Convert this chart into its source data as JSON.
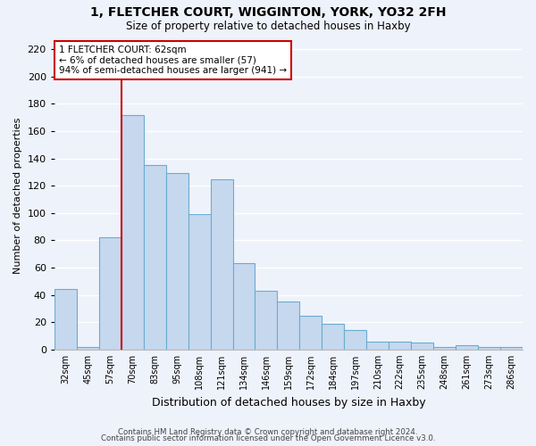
{
  "title": "1, FLETCHER COURT, WIGGINTON, YORK, YO32 2FH",
  "subtitle": "Size of property relative to detached houses in Haxby",
  "xlabel": "Distribution of detached houses by size in Haxby",
  "ylabel": "Number of detached properties",
  "bar_labels": [
    "32sqm",
    "45sqm",
    "57sqm",
    "70sqm",
    "83sqm",
    "95sqm",
    "108sqm",
    "121sqm",
    "134sqm",
    "146sqm",
    "159sqm",
    "172sqm",
    "184sqm",
    "197sqm",
    "210sqm",
    "222sqm",
    "235sqm",
    "248sqm",
    "261sqm",
    "273sqm",
    "286sqm"
  ],
  "bar_values": [
    44,
    2,
    82,
    172,
    135,
    129,
    99,
    125,
    63,
    43,
    35,
    25,
    19,
    14,
    6,
    6,
    5,
    2,
    3,
    2,
    2
  ],
  "bar_color": "#c5d8ee",
  "bar_edge_color": "#6bacd0",
  "annotation_text_line1": "1 FLETCHER COURT: 62sqm",
  "annotation_text_line2": "← 6% of detached houses are smaller (57)",
  "annotation_text_line3": "94% of semi-detached houses are larger (941) →",
  "annotation_box_color": "#ffffff",
  "annotation_box_edge": "#cc0000",
  "vline_color": "#cc0000",
  "vline_x_index": 2,
  "footer_line1": "Contains HM Land Registry data © Crown copyright and database right 2024.",
  "footer_line2": "Contains public sector information licensed under the Open Government Licence v3.0.",
  "ylim": [
    0,
    225
  ],
  "yticks": [
    0,
    20,
    40,
    60,
    80,
    100,
    120,
    140,
    160,
    180,
    200,
    220
  ],
  "background_color": "#eef2fb",
  "grid_color": "#ffffff"
}
